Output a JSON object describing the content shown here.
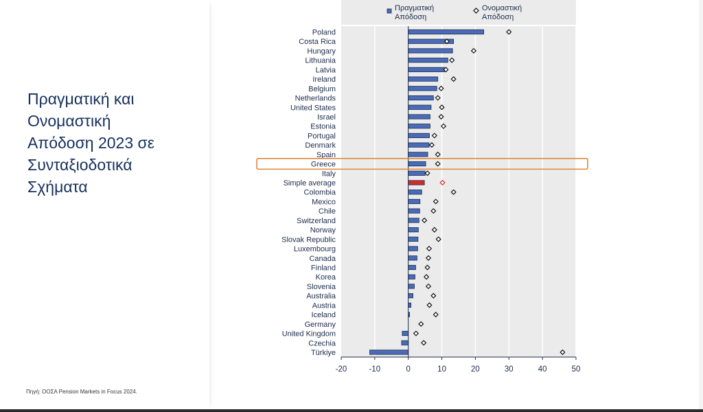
{
  "slide": {
    "title": "Πραγματική και\nΟνομαστική\nΑπόδοση 2023 σε\nΣυνταξιοδοτικά\nΣχήματα",
    "source": "Πηγή: ΟΟΣΑ Pension Markets in Focus 2024."
  },
  "colors": {
    "real": "#4a6cb8",
    "average": "#d42a2a",
    "highlight_box": "#e0873a",
    "plot_bg": "#ebebeb"
  },
  "chart_data": {
    "type": "bar",
    "orientation": "horizontal",
    "title": "",
    "xlabel": "",
    "ylabel": "",
    "xlim": [
      -20,
      50
    ],
    "xticks": [
      -20,
      -10,
      0,
      10,
      20,
      30,
      40,
      50
    ],
    "grid": true,
    "legend_position": "top",
    "highlight": "Greece",
    "average_category": "Simple average",
    "categories": [
      "Poland",
      "Costa Rica",
      "Hungary",
      "Lithuania",
      "Latvia",
      "Ireland",
      "Belgium",
      "Netherlands",
      "United States",
      "Israel",
      "Estonia",
      "Portugal",
      "Denmark",
      "Spain",
      "Greece",
      "Italy",
      "Simple average",
      "Colombia",
      "Mexico",
      "Chile",
      "Switzerland",
      "Norway",
      "Slovak Republic",
      "Luxembourg",
      "Canada",
      "Finland",
      "Korea",
      "Slovenia",
      "Australia",
      "Austria",
      "Iceland",
      "Germany",
      "United Kingdom",
      "Czechia",
      "Türkiye"
    ],
    "series": [
      {
        "name": "Πραγματική Απόδοση",
        "legend_lines": [
          "Πραγματική",
          "Απόδοση"
        ],
        "marker": "bar",
        "values": [
          22.5,
          13.5,
          13.2,
          11.8,
          10.8,
          8.8,
          8.5,
          7.5,
          6.8,
          6.5,
          6.5,
          6.3,
          6.2,
          5.8,
          5.2,
          5.0,
          4.8,
          4.0,
          3.5,
          3.4,
          3.2,
          3.0,
          2.9,
          2.8,
          2.6,
          2.2,
          2.0,
          1.8,
          1.4,
          0.8,
          0.4,
          0.0,
          -1.8,
          -2.0,
          -11.5
        ]
      },
      {
        "name": "Ονομαστική Απόδοση",
        "legend_lines": [
          "Ονομαστική",
          "Απόδοση"
        ],
        "marker": "diamond",
        "values": [
          30.0,
          11.5,
          19.5,
          13.0,
          11.2,
          13.5,
          9.8,
          8.8,
          10.0,
          9.8,
          10.5,
          7.8,
          7.0,
          8.8,
          8.8,
          5.7,
          10.2,
          13.5,
          8.2,
          7.5,
          4.8,
          7.8,
          9.0,
          6.2,
          6.0,
          5.7,
          5.4,
          6.0,
          7.5,
          6.3,
          8.2,
          3.8,
          2.3,
          4.6,
          46.0
        ]
      }
    ]
  }
}
